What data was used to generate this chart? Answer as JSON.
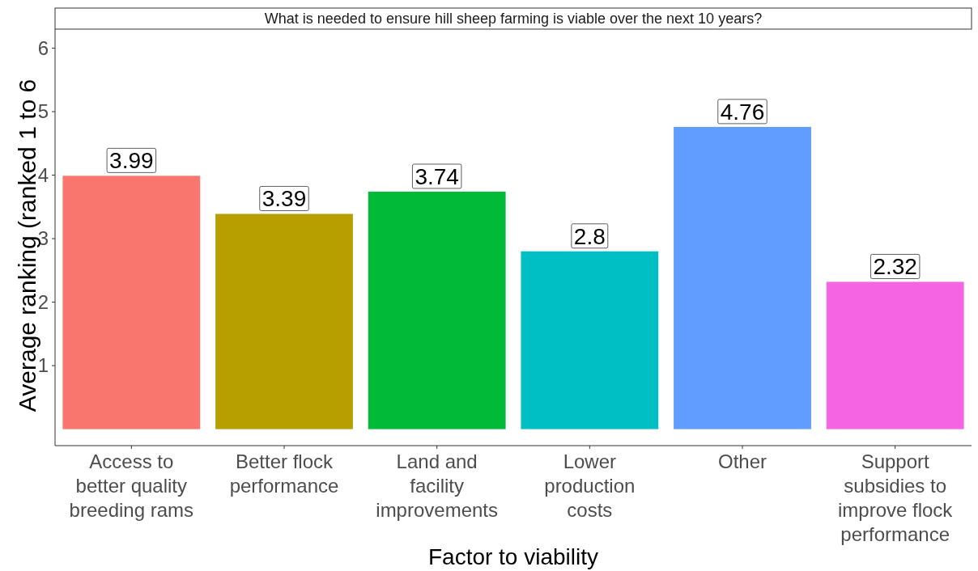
{
  "chart_data": {
    "type": "bar",
    "title": "What is needed to ensure hill sheep farming is viable over the next 10 years?",
    "xlabel": "Factor to viability",
    "ylabel": "Average ranking (ranked 1 to 6",
    "categories": [
      "Access to better quality breeding rams",
      "Better flock performance",
      "Land and facility improvements",
      "Lower production costs",
      "Other",
      "Support subsidies to improve flock performance"
    ],
    "values": [
      3.99,
      3.39,
      3.74,
      2.8,
      4.76,
      2.32
    ],
    "colors": [
      "#f8766d",
      "#b79f00",
      "#00ba38",
      "#00bfc4",
      "#619cff",
      "#f564e3"
    ],
    "ylim": [
      -0.26,
      6.3
    ],
    "yticks": [
      1,
      2,
      3,
      4,
      5,
      6
    ],
    "data_labels": true,
    "grid": false
  }
}
